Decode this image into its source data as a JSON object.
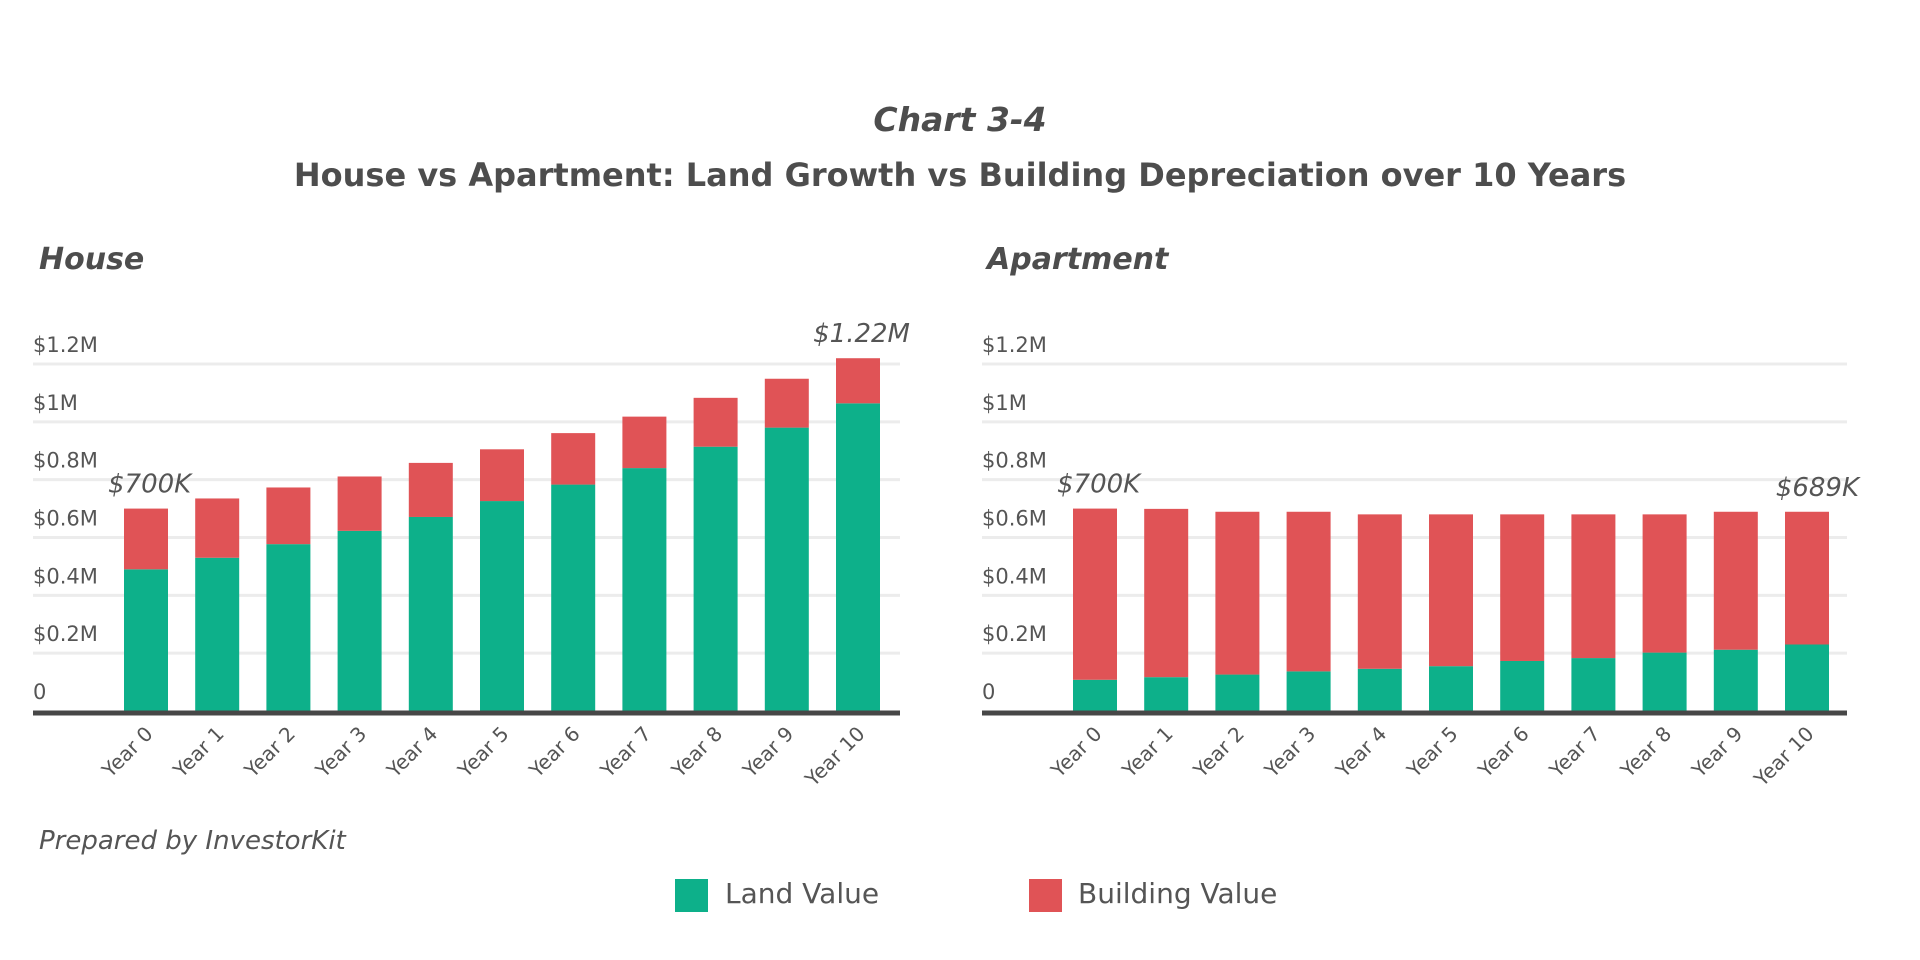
{
  "header": {
    "chart_number": "Chart 3-4",
    "title": "House vs Apartment: Land Growth vs Building Depreciation over 10 Years"
  },
  "footer": "Prepared by InvestorKit",
  "legend": [
    {
      "label": "Land Value",
      "color": "#0db08a"
    },
    {
      "label": "Building Value",
      "color": "#e05356"
    }
  ],
  "chart_data": [
    {
      "type": "bar",
      "stacked": true,
      "title": "House",
      "categories": [
        "Year 0",
        "Year 1",
        "Year 2",
        "Year 3",
        "Year 4",
        "Year 5",
        "Year 6",
        "Year 7",
        "Year 8",
        "Year 9",
        "Year 10"
      ],
      "series": [
        {
          "name": "Land Value",
          "values": [
            490000,
            530000,
            577000,
            623000,
            671000,
            726000,
            783000,
            840000,
            914000,
            980000,
            1064000
          ]
        },
        {
          "name": "Building Value",
          "values": [
            210000,
            205000,
            196000,
            188000,
            187000,
            179000,
            178000,
            178000,
            169000,
            169000,
            156000
          ]
        }
      ],
      "yticks": [
        "0",
        "$0.2M",
        "$0.4M",
        "$0.6M",
        "$0.8M",
        "$1M",
        "$1.2M"
      ],
      "ylim": [
        0,
        1200000
      ],
      "grid": true,
      "annotations": [
        {
          "category": "Year 0",
          "text": "$700K"
        },
        {
          "category": "Year 10",
          "text": "$1.22M"
        }
      ]
    },
    {
      "type": "bar",
      "stacked": true,
      "title": "Apartment",
      "categories": [
        "Year 0",
        "Year 1",
        "Year 2",
        "Year 3",
        "Year 4",
        "Year 5",
        "Year 6",
        "Year 7",
        "Year 8",
        "Year 9",
        "Year 10"
      ],
      "series": [
        {
          "name": "Land Value",
          "values": [
            108000,
            117000,
            126000,
            137000,
            146000,
            155000,
            173000,
            183000,
            202000,
            212000,
            230000
          ]
        },
        {
          "name": "Building Value",
          "values": [
            592000,
            582000,
            563000,
            552000,
            534000,
            525000,
            507000,
            497000,
            478000,
            477000,
            459000
          ]
        }
      ],
      "yticks": [
        "0",
        "$0.2M",
        "$0.4M",
        "$0.6M",
        "$0.8M",
        "$1M",
        "$1.2M"
      ],
      "ylim": [
        0,
        1200000
      ],
      "grid": true,
      "annotations": [
        {
          "category": "Year 0",
          "text": "$700K"
        },
        {
          "category": "Year 10",
          "text": "$689K"
        }
      ]
    }
  ]
}
